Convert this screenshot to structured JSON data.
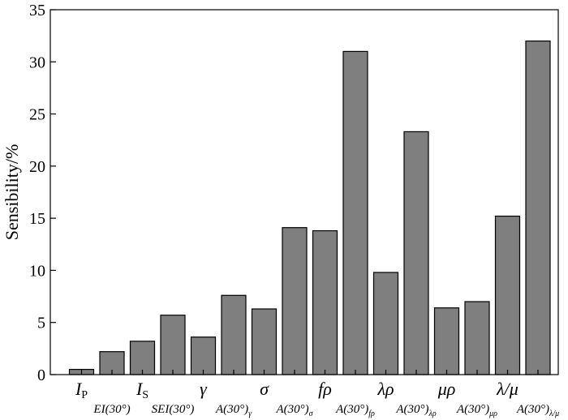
{
  "chart_data": {
    "type": "bar",
    "ylabel": "Sensibility/%",
    "ylim": [
      0,
      35
    ],
    "yticks": [
      0,
      5,
      10,
      15,
      20,
      25,
      30,
      35
    ],
    "bar_color": "#7f7f7f",
    "grid": false,
    "categories": [
      {
        "base": "I",
        "sub": "P",
        "row": 1
      },
      {
        "base": "EI(30°)",
        "sub": "",
        "row": 2
      },
      {
        "base": "I",
        "sub": "S",
        "row": 1
      },
      {
        "base": "SEI(30°)",
        "sub": "",
        "row": 2
      },
      {
        "base": "γ",
        "sub": "",
        "row": 1
      },
      {
        "base": "A(30°)",
        "sub": "γ",
        "row": 2
      },
      {
        "base": "σ",
        "sub": "",
        "row": 1
      },
      {
        "base": "A(30°)",
        "sub": "σ",
        "row": 2
      },
      {
        "base": "fρ",
        "sub": "",
        "row": 1
      },
      {
        "base": "A(30°)",
        "sub": "fρ",
        "row": 2
      },
      {
        "base": "λρ",
        "sub": "",
        "row": 1
      },
      {
        "base": "A(30°)",
        "sub": "λρ",
        "row": 2
      },
      {
        "base": "μρ",
        "sub": "",
        "row": 1
      },
      {
        "base": "A(30°)",
        "sub": "μρ",
        "row": 2
      },
      {
        "base": "λ/μ",
        "sub": "",
        "row": 1
      },
      {
        "base": "A(30°)",
        "sub": "λ/μ",
        "row": 2
      }
    ],
    "values": [
      0.5,
      2.2,
      3.2,
      5.7,
      3.6,
      7.6,
      6.3,
      14.1,
      13.8,
      31.0,
      9.8,
      23.3,
      6.4,
      7.0,
      15.2,
      32.0
    ]
  }
}
